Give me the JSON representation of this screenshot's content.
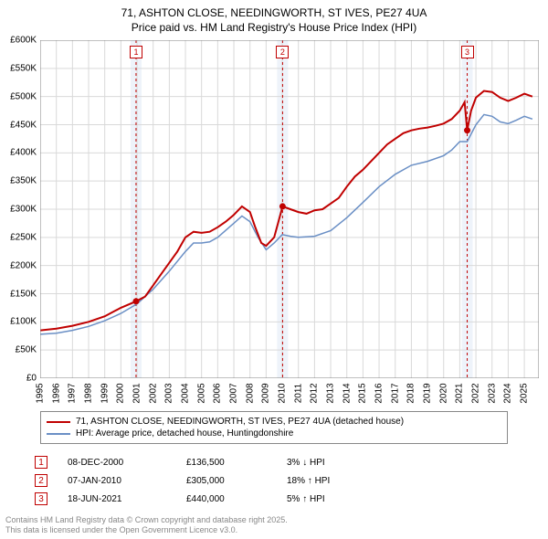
{
  "title_line1": "71, ASHTON CLOSE, NEEDINGWORTH, ST IVES, PE27 4UA",
  "title_line2": "Price paid vs. HM Land Registry's House Price Index (HPI)",
  "chart": {
    "type": "line",
    "background_color": "#ffffff",
    "grid_color": "#d9d9d9",
    "axis_color": "#808080",
    "label_fontsize": 10,
    "xstart": 1995,
    "xend": 2025.9,
    "xtick_step": 1,
    "ylim": [
      0,
      600000
    ],
    "ytick_step": 50000,
    "yticks": [
      "£0",
      "£50K",
      "£100K",
      "£150K",
      "£200K",
      "£250K",
      "£300K",
      "£350K",
      "£400K",
      "£450K",
      "£500K",
      "£550K",
      "£600K"
    ],
    "xticks": [
      "1995",
      "1996",
      "1997",
      "1998",
      "1999",
      "2000",
      "2001",
      "2002",
      "2003",
      "2004",
      "2005",
      "2006",
      "2007",
      "2008",
      "2009",
      "2010",
      "2011",
      "2012",
      "2013",
      "2014",
      "2015",
      "2016",
      "2017",
      "2018",
      "2019",
      "2020",
      "2021",
      "2022",
      "2023",
      "2024",
      "2025"
    ],
    "sale_bands": [
      {
        "x": 2000.94,
        "label": "1"
      },
      {
        "x": 2010.02,
        "label": "2"
      },
      {
        "x": 2021.46,
        "label": "3"
      }
    ],
    "band_fill": "#eef3fa",
    "band_stroke": "#c00000",
    "band_dash": "3,3",
    "marker_dot_color": "#c00000",
    "series": [
      {
        "name": "price_paid",
        "color": "#c00000",
        "width": 2,
        "points": [
          [
            1995.0,
            85000
          ],
          [
            1996.0,
            88000
          ],
          [
            1997.0,
            93000
          ],
          [
            1998.0,
            100000
          ],
          [
            1999.0,
            110000
          ],
          [
            2000.0,
            125000
          ],
          [
            2000.94,
            136500
          ],
          [
            2001.5,
            145000
          ],
          [
            2002.0,
            165000
          ],
          [
            2002.5,
            185000
          ],
          [
            2003.0,
            205000
          ],
          [
            2003.5,
            225000
          ],
          [
            2004.0,
            250000
          ],
          [
            2004.5,
            260000
          ],
          [
            2005.0,
            258000
          ],
          [
            2005.5,
            260000
          ],
          [
            2006.0,
            268000
          ],
          [
            2006.5,
            278000
          ],
          [
            2007.0,
            290000
          ],
          [
            2007.5,
            305000
          ],
          [
            2008.0,
            295000
          ],
          [
            2008.3,
            270000
          ],
          [
            2008.7,
            240000
          ],
          [
            2009.0,
            235000
          ],
          [
            2009.5,
            250000
          ],
          [
            2010.02,
            305000
          ],
          [
            2010.5,
            300000
          ],
          [
            2011.0,
            295000
          ],
          [
            2011.5,
            292000
          ],
          [
            2012.0,
            298000
          ],
          [
            2012.5,
            300000
          ],
          [
            2013.0,
            310000
          ],
          [
            2013.5,
            320000
          ],
          [
            2014.0,
            340000
          ],
          [
            2014.5,
            358000
          ],
          [
            2015.0,
            370000
          ],
          [
            2015.5,
            385000
          ],
          [
            2016.0,
            400000
          ],
          [
            2016.5,
            415000
          ],
          [
            2017.0,
            425000
          ],
          [
            2017.5,
            435000
          ],
          [
            2018.0,
            440000
          ],
          [
            2018.5,
            443000
          ],
          [
            2019.0,
            445000
          ],
          [
            2019.5,
            448000
          ],
          [
            2020.0,
            452000
          ],
          [
            2020.5,
            460000
          ],
          [
            2021.0,
            475000
          ],
          [
            2021.3,
            490000
          ],
          [
            2021.46,
            440000
          ],
          [
            2021.7,
            475000
          ],
          [
            2022.0,
            498000
          ],
          [
            2022.5,
            510000
          ],
          [
            2023.0,
            508000
          ],
          [
            2023.5,
            498000
          ],
          [
            2024.0,
            492000
          ],
          [
            2024.5,
            498000
          ],
          [
            2025.0,
            505000
          ],
          [
            2025.5,
            500000
          ]
        ]
      },
      {
        "name": "hpi",
        "color": "#6a8fc5",
        "width": 1.5,
        "points": [
          [
            1995.0,
            78000
          ],
          [
            1996.0,
            80000
          ],
          [
            1997.0,
            85000
          ],
          [
            1998.0,
            92000
          ],
          [
            1999.0,
            102000
          ],
          [
            2000.0,
            115000
          ],
          [
            2001.0,
            132000
          ],
          [
            2002.0,
            158000
          ],
          [
            2003.0,
            190000
          ],
          [
            2004.0,
            225000
          ],
          [
            2004.5,
            240000
          ],
          [
            2005.0,
            240000
          ],
          [
            2005.5,
            242000
          ],
          [
            2006.0,
            250000
          ],
          [
            2007.0,
            275000
          ],
          [
            2007.5,
            288000
          ],
          [
            2008.0,
            278000
          ],
          [
            2008.5,
            250000
          ],
          [
            2009.0,
            228000
          ],
          [
            2009.5,
            240000
          ],
          [
            2010.0,
            255000
          ],
          [
            2010.5,
            252000
          ],
          [
            2011.0,
            250000
          ],
          [
            2012.0,
            252000
          ],
          [
            2013.0,
            262000
          ],
          [
            2014.0,
            285000
          ],
          [
            2015.0,
            312000
          ],
          [
            2016.0,
            340000
          ],
          [
            2017.0,
            362000
          ],
          [
            2018.0,
            378000
          ],
          [
            2019.0,
            385000
          ],
          [
            2020.0,
            395000
          ],
          [
            2020.5,
            405000
          ],
          [
            2021.0,
            420000
          ],
          [
            2021.46,
            420000
          ],
          [
            2022.0,
            450000
          ],
          [
            2022.5,
            468000
          ],
          [
            2023.0,
            465000
          ],
          [
            2023.5,
            455000
          ],
          [
            2024.0,
            452000
          ],
          [
            2024.5,
            458000
          ],
          [
            2025.0,
            465000
          ],
          [
            2025.5,
            460000
          ]
        ]
      }
    ]
  },
  "legend": {
    "rows": [
      {
        "color": "#c00000",
        "label": "71, ASHTON CLOSE, NEEDINGWORTH, ST IVES, PE27 4UA (detached house)"
      },
      {
        "color": "#6a8fc5",
        "label": "HPI: Average price, detached house, Huntingdonshire"
      }
    ]
  },
  "sales": [
    {
      "n": "1",
      "date": "08-DEC-2000",
      "price": "£136,500",
      "pct": "3% ↓ HPI"
    },
    {
      "n": "2",
      "date": "07-JAN-2010",
      "price": "£305,000",
      "pct": "18% ↑ HPI"
    },
    {
      "n": "3",
      "date": "18-JUN-2021",
      "price": "£440,000",
      "pct": "5% ↑ HPI"
    }
  ],
  "footer_line1": "Contains HM Land Registry data © Crown copyright and database right 2025.",
  "footer_line2": "This data is licensed under the Open Government Licence v3.0."
}
